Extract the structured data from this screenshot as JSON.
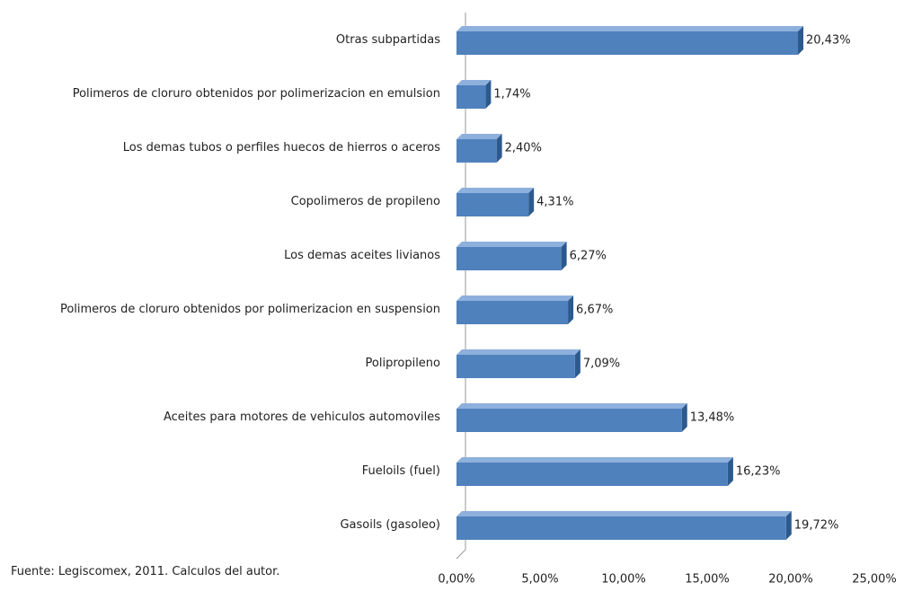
{
  "chart_data": {
    "type": "bar",
    "orientation": "horizontal",
    "categories": [
      "Otras subpartidas",
      "Polimeros de cloruro obtenidos por polimerizacion en emulsion",
      "Los demas tubos o perfiles huecos de hierros o aceros",
      "Copolimeros de propileno",
      "Los demas aceites livianos",
      "Polimeros de cloruro obtenidos por polimerizacion en suspension",
      "Polipropileno",
      "Aceites para motores de vehiculos automoviles",
      "Fueloils (fuel)",
      "Gasoils (gasoleo)"
    ],
    "values": [
      20.43,
      1.74,
      2.4,
      4.31,
      6.27,
      6.67,
      7.09,
      13.48,
      16.23,
      19.72
    ],
    "value_labels": [
      "20,43%",
      "1,74%",
      "2,40%",
      "4,31%",
      "6,27%",
      "6,67%",
      "7,09%",
      "13,48%",
      "16,23%",
      "19,72%"
    ],
    "color": "#4f81bd",
    "xlim": [
      0,
      25
    ],
    "xticks": [
      {
        "value": 0,
        "label": "0,00%"
      },
      {
        "value": 5,
        "label": "5,00%"
      },
      {
        "value": 10,
        "label": "10,00%"
      },
      {
        "value": 15,
        "label": "15,00%"
      },
      {
        "value": 20,
        "label": "20,00%"
      },
      {
        "value": 25,
        "label": "25,00%"
      }
    ],
    "grid": false,
    "note": "Fuente: Legiscomex, 2011. Calculos del autor."
  }
}
